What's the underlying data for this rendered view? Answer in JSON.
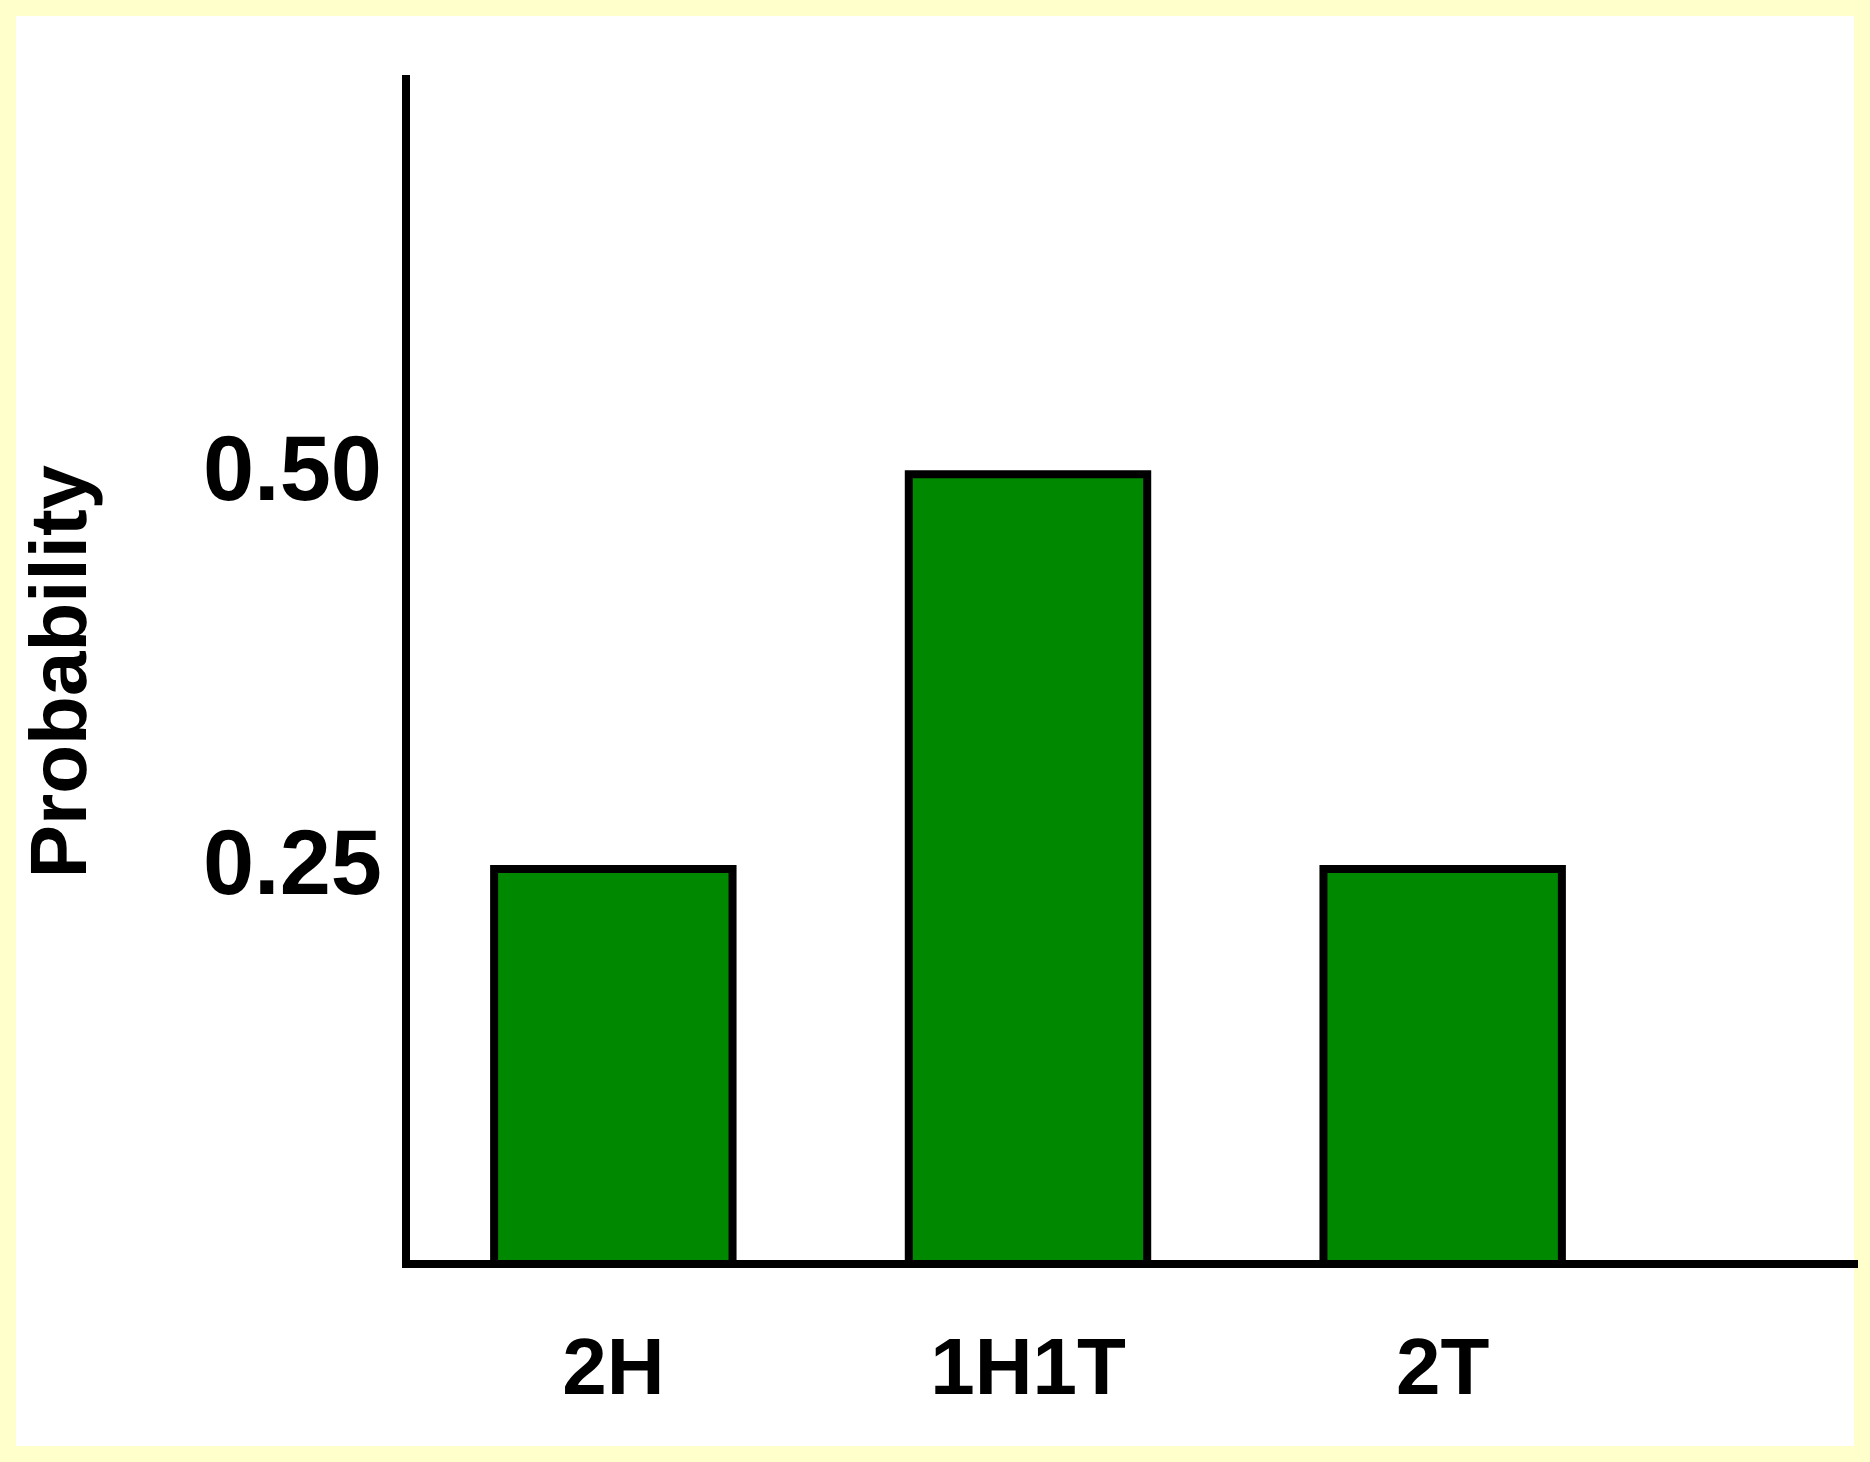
{
  "chart_data": {
    "type": "bar",
    "categories": [
      "2H",
      "1H1T",
      "2T"
    ],
    "values": [
      0.25,
      0.5,
      0.25
    ],
    "color": "#008800",
    "ylabel": "Probability",
    "ylim": [
      0,
      0.75
    ],
    "yticks": [
      {
        "value": 0.25,
        "label": "0.25"
      },
      {
        "value": 0.5,
        "label": "0.50"
      }
    ],
    "grid": false,
    "legend": false
  }
}
